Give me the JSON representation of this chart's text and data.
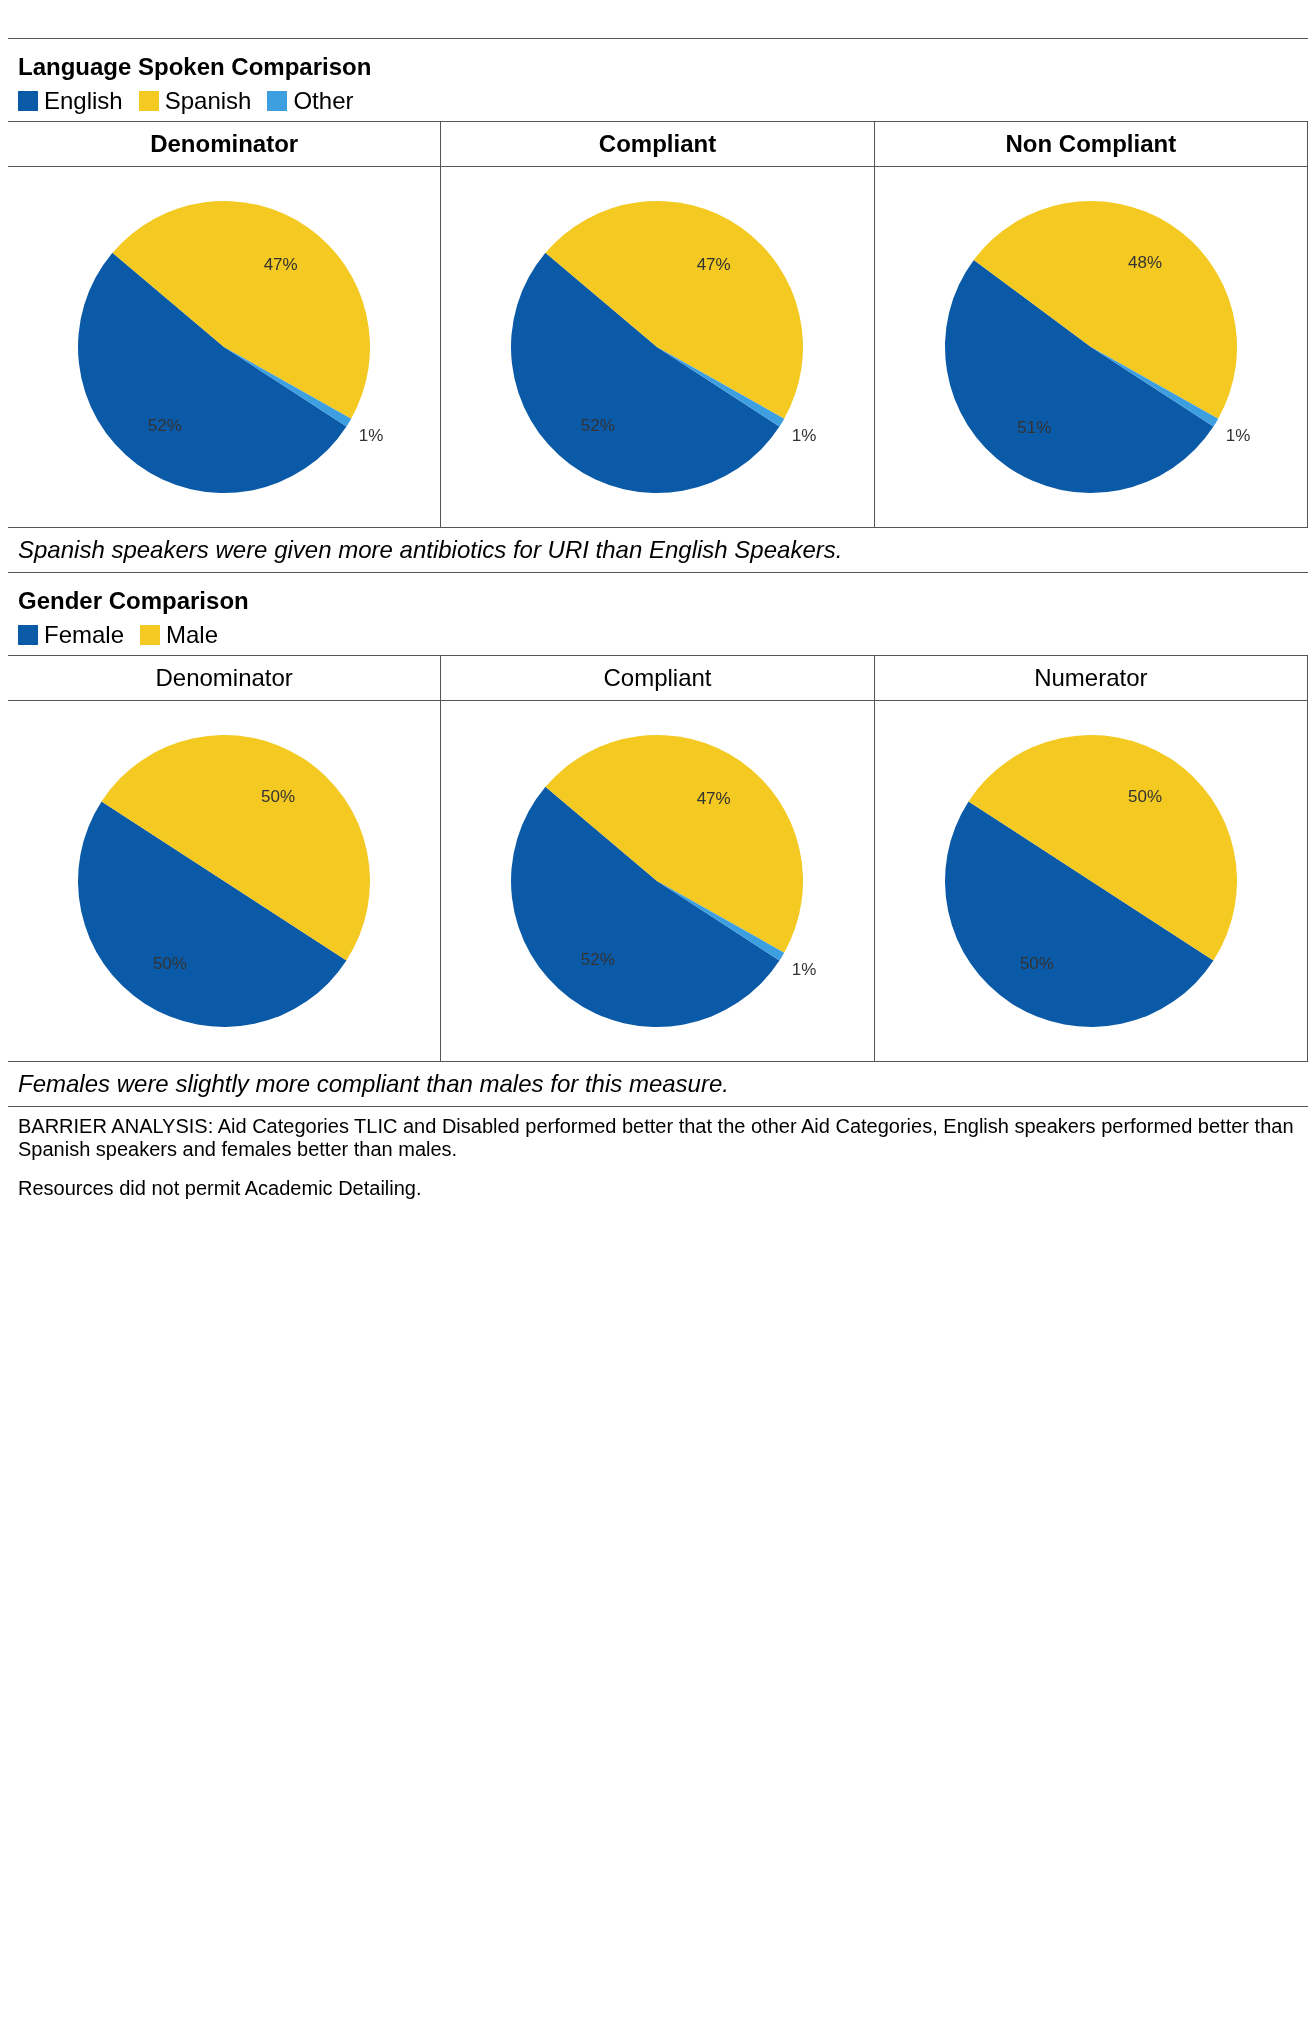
{
  "chart_data": [
    {
      "type": "pie",
      "title": "Denominator",
      "legend_title": "Language Spoken Comparison",
      "legend": "top left",
      "categories": [
        "English",
        "Spanish",
        "Other"
      ],
      "values": [
        52,
        47,
        1
      ],
      "colors": [
        "#0b5aa8",
        "#f3c922",
        "#3d9ee0"
      ],
      "value_labels": [
        "52%",
        "47%",
        "1%"
      ],
      "annotations": [
        "Spanish speakers were given more antibiotics for URI than English Speakers."
      ]
    },
    {
      "type": "pie",
      "title": "Compliant",
      "categories": [
        null,
        null,
        null
      ],
      "values": [
        52,
        47,
        1
      ],
      "colors": [
        "#0b5aa8",
        "#f3c922",
        "#3d9ee0"
      ],
      "value_labels": [
        "52%",
        "47%",
        "1%"
      ]
    },
    {
      "type": "pie",
      "title": "Non Compliant",
      "categories": [
        null,
        null,
        null
      ],
      "values": [
        51,
        48,
        1
      ],
      "colors": [
        "#0b5aa8",
        "#f3c922",
        "#3d9ee0"
      ],
      "value_labels": [
        "51%",
        "48%",
        "1%"
      ]
    },
    {
      "type": "pie",
      "title": "Denominator",
      "legend_title": "Gender Comparison",
      "legend": "top left",
      "categories": [
        "Female",
        "Male"
      ],
      "values": [
        50,
        50
      ],
      "colors": [
        "#0b5aa8",
        "#f3c922"
      ],
      "value_labels": [
        "50%",
        "50%"
      ],
      "annotations": [
        "Females were slightly more compliant than males for this measure."
      ]
    },
    {
      "type": "pie",
      "title": "Compliant",
      "categories": [
        null,
        null,
        null
      ],
      "values": [
        52,
        47,
        1
      ],
      "colors": [
        "#0b5aa8",
        "#f3c922",
        "#3d9ee0"
      ],
      "value_labels": [
        "52%",
        "47%",
        "1%"
      ]
    },
    {
      "type": "pie",
      "title": "Numerator",
      "categories": [
        null,
        null
      ],
      "values": [
        50,
        50
      ],
      "colors": [
        "#0b5aa8",
        "#f3c922"
      ],
      "value_labels": [
        "50%",
        "50%"
      ],
      "annotations": [
        "BARRIER ANALYSIS: Aid Categories TLIC and Disabled performed better that the other Aid Categories, English speakers performed better than Spanish speakers and females better than males.",
        "Resources did not permit Academic Detailing."
      ]
    }
  ]
}
